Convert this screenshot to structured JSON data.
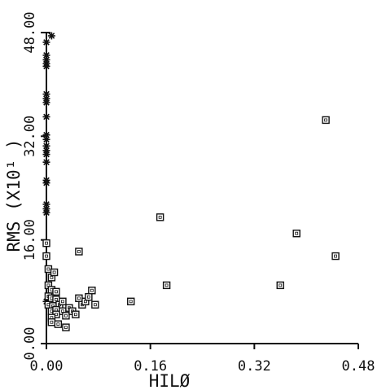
{
  "chart_data": {
    "type": "scatter",
    "title": "",
    "xlabel": "HILØ",
    "ylabel": "RMS (X10¹ )",
    "xlim": [
      0,
      0.48
    ],
    "ylim": [
      0,
      48
    ],
    "xticks": [
      "0.00",
      "0.16",
      "0.32",
      "0.48"
    ],
    "yticks": [
      "0.00",
      "16.00",
      "32.00",
      "48.00"
    ],
    "grid": false,
    "series": [
      {
        "marker": "asterisk",
        "points": [
          [
            0.0,
            46.5
          ],
          [
            0.0,
            44.5
          ],
          [
            0.0,
            43.8
          ],
          [
            0.0,
            43.2
          ],
          [
            0.0,
            42.8
          ],
          [
            0.0,
            38.5
          ],
          [
            0.0,
            37.8
          ],
          [
            0.0,
            37.2
          ],
          [
            0.0,
            35.0
          ],
          [
            0.0,
            32.2
          ],
          [
            0.0,
            31.5
          ],
          [
            0.0,
            30.5
          ],
          [
            0.0,
            29.8
          ],
          [
            0.0,
            29.2
          ],
          [
            0.0,
            28.0
          ],
          [
            0.0,
            25.2
          ],
          [
            0.0,
            24.8
          ],
          [
            0.0,
            21.5
          ],
          [
            0.0,
            20.8
          ],
          [
            0.0,
            20.2
          ],
          [
            0.0,
            6.5
          ],
          [
            0.008,
            47.5
          ]
        ]
      },
      {
        "marker": "square",
        "points": [
          [
            0.0,
            15.5
          ],
          [
            0.0,
            13.5
          ],
          [
            0.003,
            11.5
          ],
          [
            0.008,
            10.2
          ],
          [
            0.003,
            9.0
          ],
          [
            0.008,
            8.3
          ],
          [
            0.015,
            8.0
          ],
          [
            0.003,
            7.3
          ],
          [
            0.008,
            7.0
          ],
          [
            0.015,
            6.8
          ],
          [
            0.003,
            6.0
          ],
          [
            0.01,
            5.8
          ],
          [
            0.02,
            6.0
          ],
          [
            0.025,
            6.5
          ],
          [
            0.008,
            5.0
          ],
          [
            0.015,
            5.2
          ],
          [
            0.025,
            5.0
          ],
          [
            0.035,
            5.5
          ],
          [
            0.015,
            4.5
          ],
          [
            0.008,
            4.0
          ],
          [
            0.03,
            4.3
          ],
          [
            0.008,
            3.3
          ],
          [
            0.018,
            3.0
          ],
          [
            0.03,
            2.5
          ],
          [
            0.04,
            5.0
          ],
          [
            0.045,
            4.5
          ],
          [
            0.05,
            7.0
          ],
          [
            0.055,
            6.0
          ],
          [
            0.06,
            6.5
          ],
          [
            0.065,
            7.2
          ],
          [
            0.07,
            8.2
          ],
          [
            0.075,
            6.0
          ],
          [
            0.012,
            11.0
          ],
          [
            0.05,
            14.2
          ],
          [
            0.13,
            6.5
          ],
          [
            0.175,
            19.5
          ],
          [
            0.185,
            9.0
          ],
          [
            0.36,
            9.0
          ],
          [
            0.385,
            17.0
          ],
          [
            0.43,
            34.5
          ],
          [
            0.445,
            13.5
          ]
        ]
      }
    ]
  }
}
